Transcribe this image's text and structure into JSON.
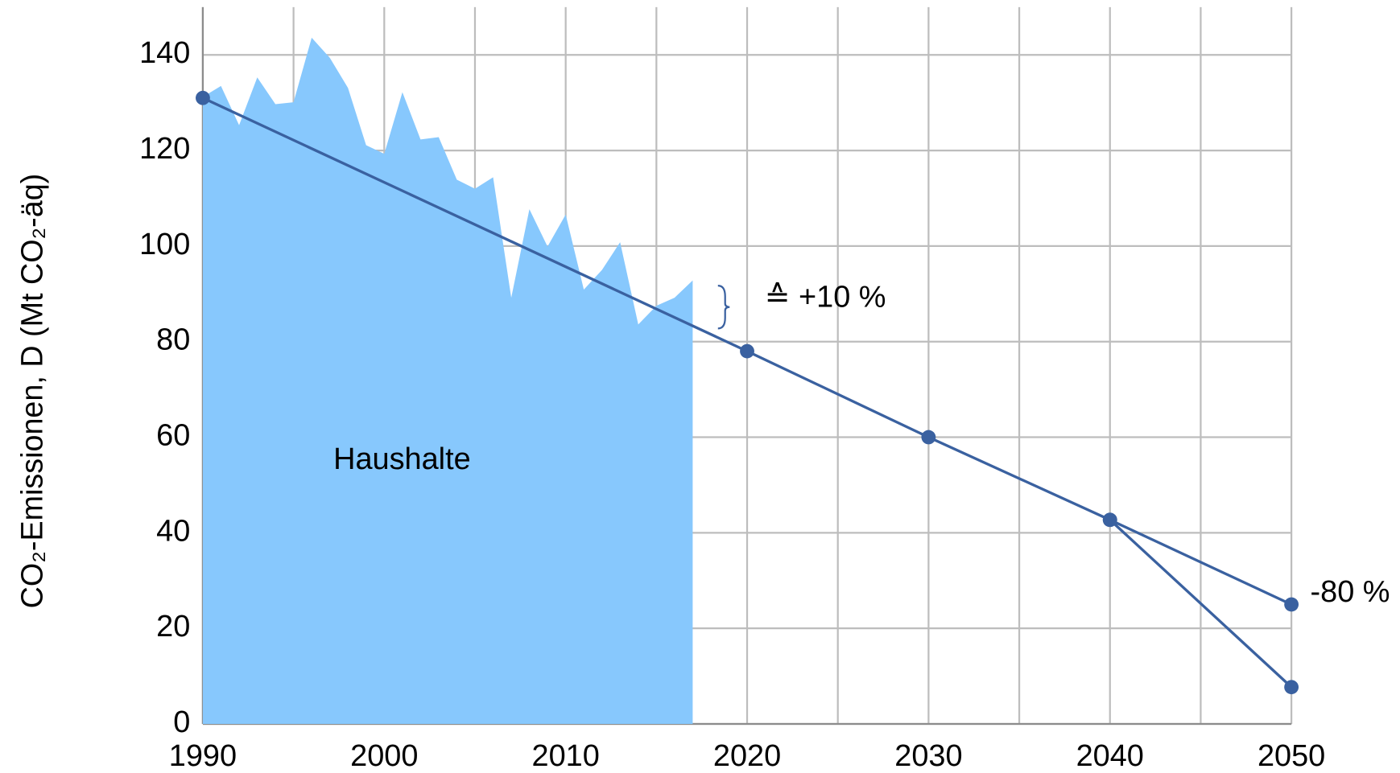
{
  "chart_data": {
    "type": "line",
    "y_label": "CO₂-Emissionen, D (Mt CO₂-äq)",
    "xlim": [
      1990,
      2050
    ],
    "xticks": [
      1990,
      2000,
      2010,
      2020,
      2030,
      2040,
      2050
    ],
    "x_minor_ticks": [
      1995,
      2005,
      2015,
      2025,
      2035,
      2045
    ],
    "ylim": [
      0,
      150
    ],
    "yticks": [
      0,
      20,
      40,
      60,
      80,
      100,
      120,
      140
    ],
    "grid": true,
    "series": [
      {
        "name": "Haushalte",
        "type": "area",
        "color": "#87c8fd",
        "x": [
          1990,
          1991,
          1992,
          1993,
          1994,
          1995,
          1996,
          1997,
          1998,
          1999,
          2000,
          2001,
          2002,
          2003,
          2004,
          2005,
          2006,
          2007,
          2008,
          2009,
          2010,
          2011,
          2012,
          2013,
          2014,
          2015,
          2016,
          2017
        ],
        "values": [
          131.2,
          133.5,
          125.3,
          135.3,
          129.7,
          130.1,
          143.6,
          139.4,
          133.1,
          121.1,
          119.3,
          132.2,
          122.3,
          122.8,
          113.9,
          112.0,
          114.4,
          89.2,
          107.7,
          99.9,
          106.6,
          90.9,
          95.0,
          100.8,
          83.6,
          87.5,
          89.2,
          92.8
        ]
      },
      {
        "type": "line",
        "color": "#3a61a0",
        "x": [
          1990,
          2020,
          2030,
          2040,
          2050
        ],
        "values": [
          131,
          78,
          60,
          42.7,
          25
        ]
      },
      {
        "type": "line",
        "color": "#3a61a0",
        "x": [
          2040,
          2050
        ],
        "values": [
          42.7,
          7.7
        ]
      }
    ],
    "annotations": [
      {
        "text": "≙  +10 %"
      },
      {
        "text": "-80 %"
      }
    ]
  }
}
